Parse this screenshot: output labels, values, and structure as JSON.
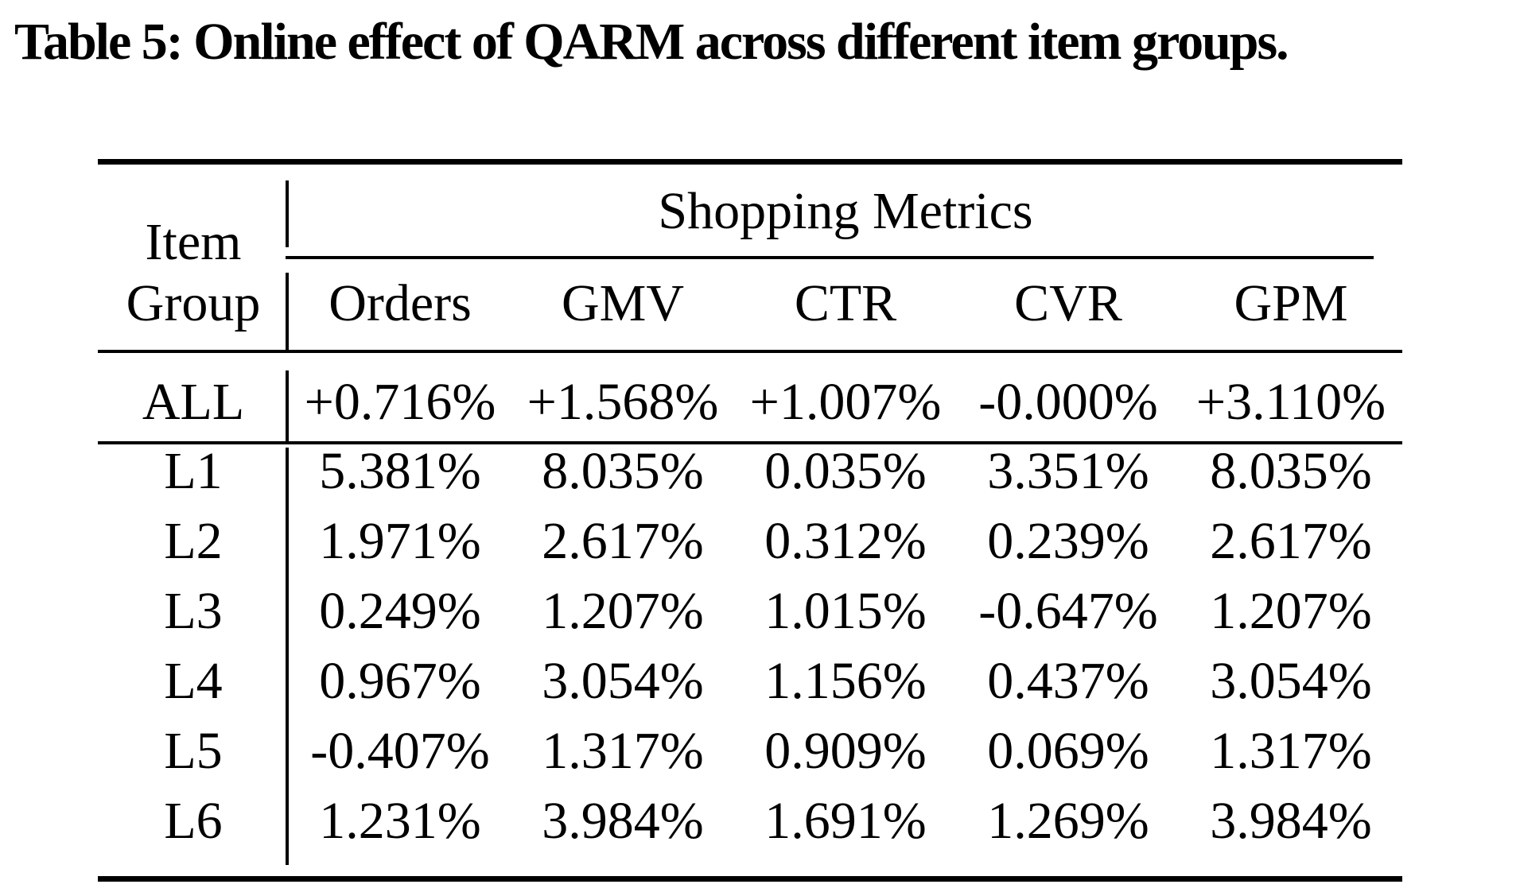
{
  "title": "Table 5: Online effect of QARM across different item groups.",
  "table": {
    "group_header": "Shopping Metrics",
    "row_header_line1": "Item",
    "row_header_line2": "Group",
    "columns": [
      "Orders",
      "GMV",
      "CTR",
      "CVR",
      "GPM"
    ],
    "rows": [
      {
        "label": "ALL",
        "values": [
          "+0.716%",
          "+1.568%",
          "+1.007%",
          "-0.000%",
          "+3.110%"
        ]
      },
      {
        "label": "L1",
        "values": [
          "5.381%",
          "8.035%",
          "0.035%",
          "3.351%",
          "8.035%"
        ]
      },
      {
        "label": "L2",
        "values": [
          "1.971%",
          "2.617%",
          "0.312%",
          "0.239%",
          "2.617%"
        ]
      },
      {
        "label": "L3",
        "values": [
          "0.249%",
          "1.207%",
          "1.015%",
          "-0.647%",
          "1.207%"
        ]
      },
      {
        "label": "L4",
        "values": [
          "0.967%",
          "3.054%",
          "1.156%",
          "0.437%",
          "3.054%"
        ]
      },
      {
        "label": "L5",
        "values": [
          "-0.407%",
          "1.317%",
          "0.909%",
          "0.069%",
          "1.317%"
        ]
      },
      {
        "label": "L6",
        "values": [
          "1.231%",
          "3.984%",
          "1.691%",
          "1.269%",
          "3.984%"
        ]
      }
    ]
  },
  "chart_data": {
    "type": "table",
    "title": "Table 5: Online effect of QARM across different item groups.",
    "column_group_header": "Shopping Metrics",
    "row_header": "Item Group",
    "columns": [
      "Orders",
      "GMV",
      "CTR",
      "CVR",
      "GPM"
    ],
    "rows": [
      "ALL",
      "L1",
      "L2",
      "L3",
      "L4",
      "L5",
      "L6"
    ],
    "values_pct": [
      [
        0.716,
        1.568,
        1.007,
        -0.0,
        3.11
      ],
      [
        5.381,
        8.035,
        0.035,
        3.351,
        8.035
      ],
      [
        1.971,
        2.617,
        0.312,
        0.239,
        2.617
      ],
      [
        0.249,
        1.207,
        1.015,
        -0.647,
        1.207
      ],
      [
        0.967,
        3.054,
        1.156,
        0.437,
        3.054
      ],
      [
        -0.407,
        1.317,
        0.909,
        0.069,
        1.317
      ],
      [
        1.231,
        3.984,
        1.691,
        1.269,
        3.984
      ]
    ]
  }
}
